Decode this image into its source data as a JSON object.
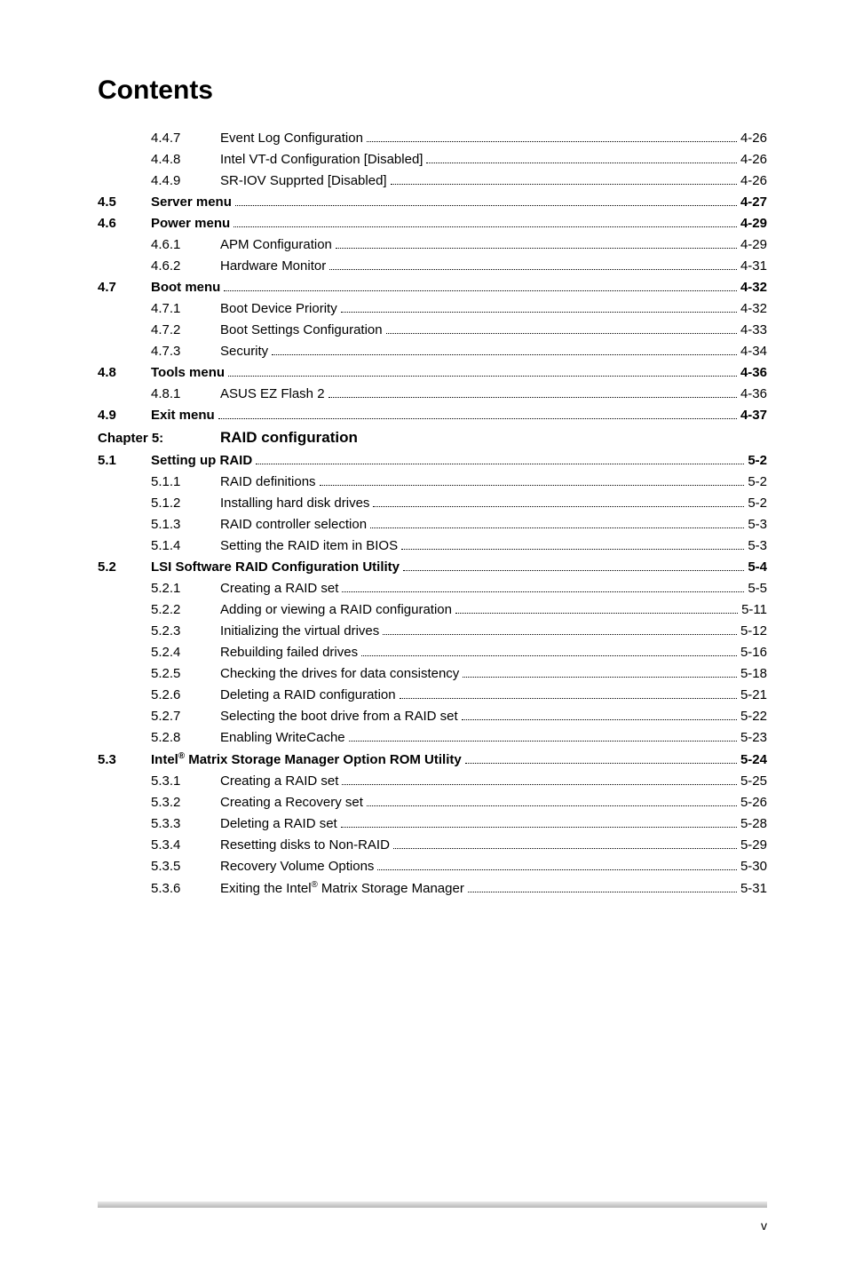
{
  "title": "Contents",
  "footer": "v",
  "entries": [
    {
      "type": "sub",
      "num": "4.4.7",
      "label": "Event Log Configuration",
      "page": "4-26",
      "bold": false
    },
    {
      "type": "sub",
      "num": "4.4.8",
      "label": "Intel VT-d Configuration [Disabled]",
      "page": "4-26",
      "bold": false
    },
    {
      "type": "sub",
      "num": "4.4.9",
      "label": "SR-IOV Supprted [Disabled]",
      "page": "4-26",
      "bold": false
    },
    {
      "type": "section",
      "num": "4.5",
      "label": "Server menu",
      "page": "4-27",
      "bold": true
    },
    {
      "type": "section",
      "num": "4.6",
      "label": "Power menu",
      "page": "4-29",
      "bold": true
    },
    {
      "type": "sub",
      "num": "4.6.1",
      "label": "APM Configuration",
      "page": "4-29",
      "bold": false
    },
    {
      "type": "sub",
      "num": "4.6.2",
      "label": "Hardware Monitor",
      "page": "4-31",
      "bold": false
    },
    {
      "type": "section",
      "num": "4.7",
      "label": "Boot menu",
      "page": "4-32",
      "bold": true
    },
    {
      "type": "sub",
      "num": "4.7.1",
      "label": "Boot Device Priority",
      "page": "4-32",
      "bold": false
    },
    {
      "type": "sub",
      "num": "4.7.2",
      "label": "Boot Settings Configuration",
      "page": "4-33",
      "bold": false
    },
    {
      "type": "sub",
      "num": "4.7.3",
      "label": "Security",
      "page": "4-34",
      "bold": false
    },
    {
      "type": "section",
      "num": "4.8",
      "label": "Tools menu",
      "page": "4-36",
      "bold": true
    },
    {
      "type": "sub",
      "num": "4.8.1",
      "label": "ASUS EZ Flash 2",
      "page": "4-36",
      "bold": false
    },
    {
      "type": "section",
      "num": "4.9",
      "label": "Exit menu",
      "page": "4-37",
      "bold": true
    },
    {
      "type": "chapter",
      "num": "Chapter 5:",
      "label": "RAID configuration"
    },
    {
      "type": "section",
      "num": "5.1",
      "label": "Setting up RAID",
      "page": "5-2",
      "bold": true
    },
    {
      "type": "sub",
      "num": "5.1.1",
      "label": "RAID definitions",
      "page": "5-2",
      "bold": false
    },
    {
      "type": "sub",
      "num": "5.1.2",
      "label": "Installing hard disk drives",
      "page": "5-2",
      "bold": false
    },
    {
      "type": "sub",
      "num": "5.1.3",
      "label": "RAID controller selection",
      "page": "5-3",
      "bold": false
    },
    {
      "type": "sub",
      "num": "5.1.4",
      "label": "Setting the RAID item in BIOS",
      "page": "5-3",
      "bold": false
    },
    {
      "type": "section",
      "num": "5.2",
      "label": "LSI Software RAID Configuration Utility",
      "page": "5-4",
      "bold": true
    },
    {
      "type": "sub",
      "num": "5.2.1",
      "label": "Creating a RAID set",
      "page": "5-5",
      "bold": false
    },
    {
      "type": "sub",
      "num": "5.2.2",
      "label": "Adding or viewing a RAID configuration",
      "page": "5-11",
      "bold": false
    },
    {
      "type": "sub",
      "num": "5.2.3",
      "label": "Initializing the virtual drives",
      "page": "5-12",
      "bold": false
    },
    {
      "type": "sub",
      "num": "5.2.4",
      "label": "Rebuilding failed drives",
      "page": "5-16",
      "bold": false
    },
    {
      "type": "sub",
      "num": "5.2.5",
      "label": "Checking the drives for data consistency",
      "page": "5-18",
      "bold": false
    },
    {
      "type": "sub",
      "num": "5.2.6",
      "label": "Deleting a RAID configuration",
      "page": "5-21",
      "bold": false
    },
    {
      "type": "sub",
      "num": "5.2.7",
      "label": "Selecting the boot drive from a RAID set",
      "page": "5-22",
      "bold": false
    },
    {
      "type": "sub",
      "num": "5.2.8",
      "label": "Enabling WriteCache",
      "page": "5-23",
      "bold": false
    },
    {
      "type": "section",
      "num": "5.3",
      "label": "Intel<sup>®</sup> Matrix Storage Manager Option ROM Utility",
      "page": "5-24",
      "bold": true,
      "html": true
    },
    {
      "type": "sub",
      "num": "5.3.1",
      "label": "Creating a RAID set",
      "page": "5-25",
      "bold": false
    },
    {
      "type": "sub",
      "num": "5.3.2",
      "label": "Creating a Recovery set",
      "page": "5-26",
      "bold": false
    },
    {
      "type": "sub",
      "num": "5.3.3",
      "label": "Deleting a RAID set",
      "page": "5-28",
      "bold": false
    },
    {
      "type": "sub",
      "num": "5.3.4",
      "label": "Resetting disks to Non-RAID",
      "page": "5-29",
      "bold": false
    },
    {
      "type": "sub",
      "num": "5.3.5",
      "label": "Recovery Volume Options",
      "page": "5-30",
      "bold": false
    },
    {
      "type": "sub",
      "num": "5.3.6",
      "label": "Exiting the Intel<sup>®</sup> Matrix Storage Manager",
      "page": "5-31",
      "bold": false,
      "html": true
    }
  ]
}
